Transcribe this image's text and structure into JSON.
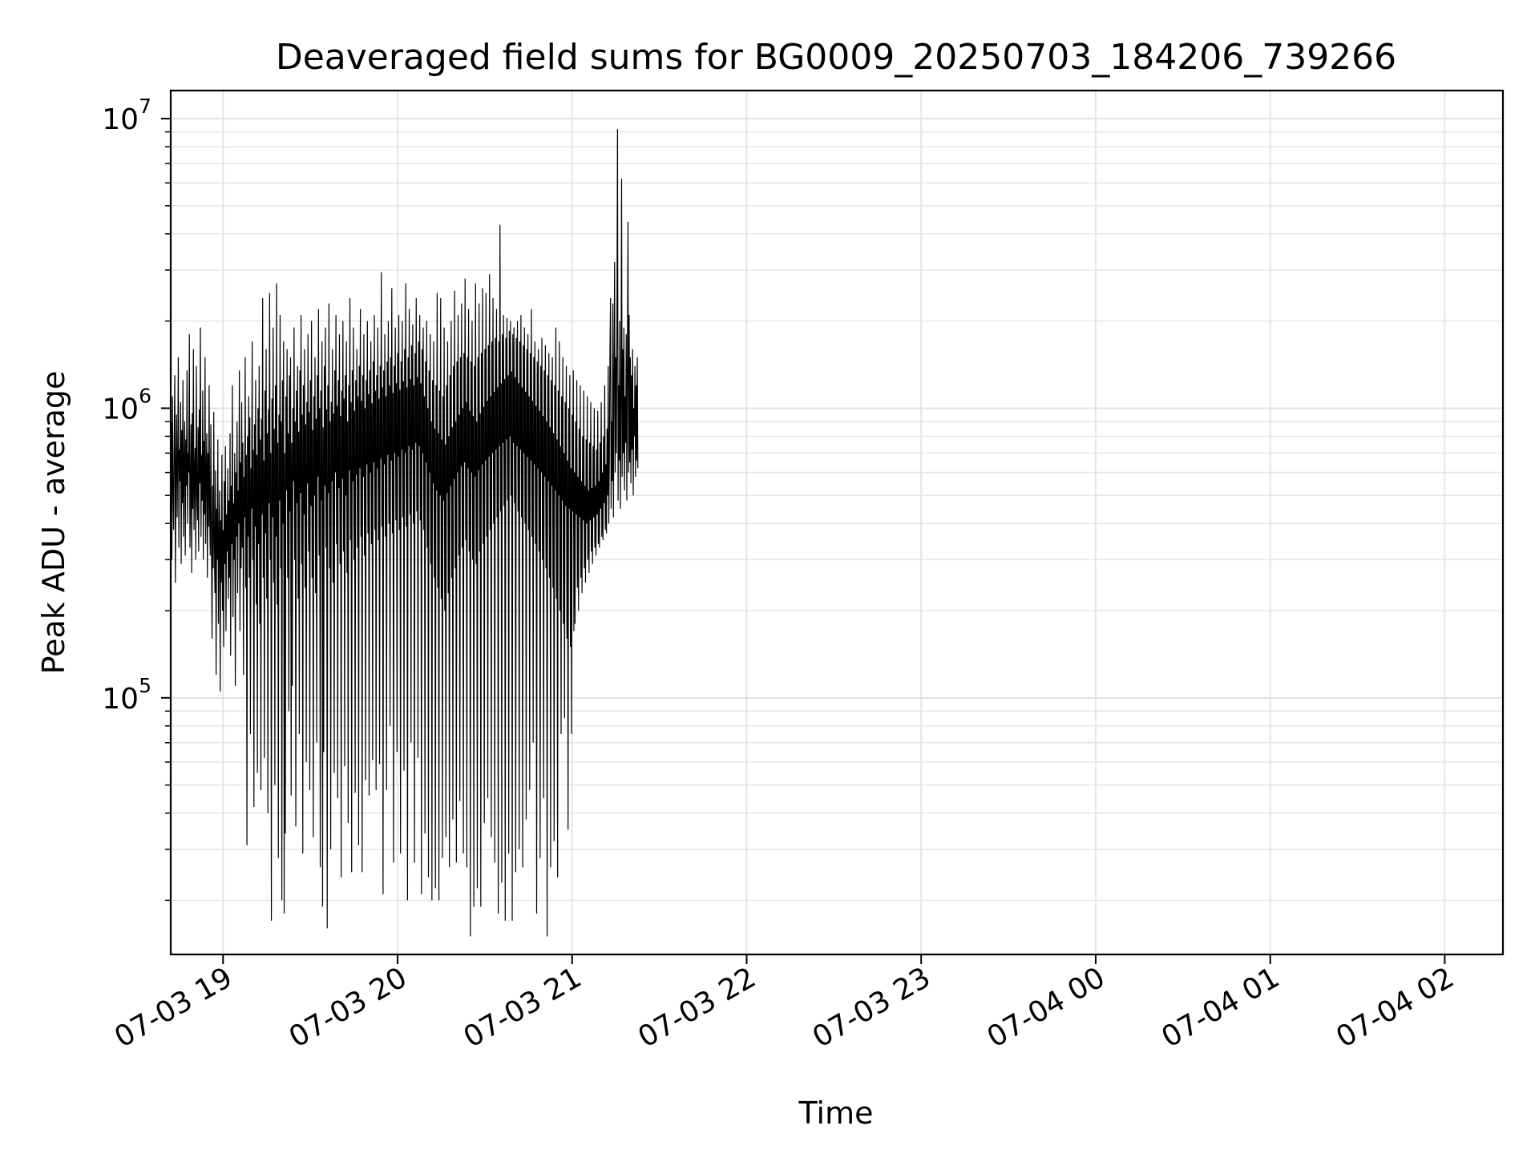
{
  "chart_data": {
    "type": "line",
    "title": "Deaveraged field sums for BG0009_20250703_184206_739266",
    "xlabel": "Time",
    "ylabel": "Peak ADU - average",
    "yscale": "log",
    "ylim": [
      13000,
      12500000
    ],
    "xlim": [
      "07-03 18:42",
      "07-04 02:20"
    ],
    "grid": true,
    "line_color": "#000000",
    "x_ticks": [
      "07-03 19",
      "07-03 20",
      "07-03 21",
      "07-03 22",
      "07-03 23",
      "07-04 00",
      "07-04 01",
      "07-04 02"
    ],
    "y_ticks": [
      {
        "base": "10",
        "exp": "5",
        "value": 100000
      },
      {
        "base": "10",
        "exp": "6",
        "value": 1000000
      },
      {
        "base": "10",
        "exp": "7",
        "value": 10000000
      }
    ],
    "sampling_interval_minutes": 0.2,
    "series": [
      {
        "values": [
          480000,
          900000,
          300000,
          1100000,
          520000,
          380000,
          760000,
          1300000,
          250000,
          610000,
          950000,
          420000,
          680000,
          1500000,
          330000,
          720000,
          560000,
          1050000,
          290000,
          840000,
          470000,
          1250000,
          360000,
          640000,
          900000,
          310000,
          780000,
          540000,
          1350000,
          400000,
          700000,
          600000,
          1800000,
          330000,
          510000,
          880000,
          270000,
          960000,
          450000,
          1600000,
          380000,
          620000,
          730000,
          300000,
          1400000,
          500000,
          410000,
          860000,
          320000,
          990000,
          550000,
          1900000,
          360000,
          690000,
          480000,
          1150000,
          300000,
          770000,
          430000,
          1500000,
          340000,
          600000,
          820000,
          260000,
          700000,
          390000,
          1200000,
          420000,
          310000,
          880000,
          350000,
          160000,
          540000,
          280000,
          970000,
          330000,
          230000,
          610000,
          120000,
          450000,
          300000,
          780000,
          180000,
          360000,
          520000,
          105000,
          410000,
          250000,
          690000,
          200000,
          380000,
          150000,
          560000,
          290000,
          740000,
          170000,
          430000,
          320000,
          620000,
          220000,
          480000,
          260000,
          820000,
          140000,
          540000,
          340000,
          1200000,
          190000,
          470000,
          300000,
          700000,
          110000,
          600000,
          360000,
          900000,
          230000,
          520000,
          400000,
          1350000,
          170000,
          650000,
          280000,
          1050000,
          330000,
          760000,
          120000,
          580000,
          420000,
          1500000,
          240000,
          690000,
          31000,
          800000,
          360000,
          1100000,
          260000,
          930000,
          75000,
          620000,
          450000,
          1700000,
          300000,
          720000,
          42000,
          880000,
          390000,
          1250000,
          210000,
          690000,
          55000,
          1000000,
          340000,
          1400000,
          180000,
          780000,
          48000,
          920000,
          430000,
          2400000,
          260000,
          660000,
          62000,
          1150000,
          370000,
          1600000,
          220000,
          820000,
          40000,
          990000,
          470000,
          2500000,
          300000,
          700000,
          17000,
          1080000,
          420000,
          1900000,
          250000,
          850000,
          50000,
          1200000,
          360000,
          2700000,
          210000,
          760000,
          28000,
          950000,
          480000,
          2100000,
          280000,
          900000,
          20000,
          1250000,
          400000,
          1700000,
          18000,
          700000,
          34000,
          1100000,
          520000,
          1600000,
          260000,
          820000,
          90000,
          1300000,
          440000,
          1500000,
          46000,
          760000,
          110000,
          1000000,
          560000,
          1900000,
          300000,
          900000,
          36000,
          1150000,
          470000,
          1400000,
          220000,
          830000,
          75000,
          1350000,
          510000,
          2100000,
          290000,
          950000,
          29000,
          1200000,
          430000,
          1600000,
          240000,
          880000,
          60000,
          1050000,
          550000,
          1800000,
          320000,
          970000,
          48000,
          1250000,
          460000,
          2000000,
          260000,
          840000,
          33000,
          1100000,
          500000,
          1500000,
          230000,
          920000,
          70000,
          1300000,
          580000,
          2200000,
          310000,
          1000000,
          26000,
          1150000,
          480000,
          1700000,
          19000,
          860000,
          65000,
          1400000,
          540000,
          1900000,
          330000,
          990000,
          16000,
          1200000,
          510000,
          2300000,
          280000,
          900000,
          30000,
          1050000,
          560000,
          1600000,
          250000,
          960000,
          55000,
          1350000,
          600000,
          2100000,
          340000,
          1020000,
          45000,
          1250000,
          530000,
          1800000,
          290000,
          940000,
          24000,
          1150000,
          570000,
          2000000,
          320000,
          1080000,
          58000,
          1300000,
          500000,
          1700000,
          270000,
          900000,
          37000,
          1200000,
          610000,
          2400000,
          350000,
          1050000,
          25000,
          1350000,
          560000,
          1900000,
          300000,
          980000,
          47000,
          1250000,
          590000,
          1600000,
          330000,
          1100000,
          31000,
          1400000,
          620000,
          2200000,
          360000,
          1060000,
          25000,
          1300000,
          580000,
          1800000,
          310000,
          1000000,
          52000,
          1250000,
          640000,
          2000000,
          370000,
          1120000,
          46000,
          1350000,
          600000,
          1700000,
          340000,
          1040000,
          61000,
          1450000,
          650000,
          2100000,
          380000,
          1150000,
          48000,
          1300000,
          620000,
          1900000,
          350000,
          1080000,
          59000,
          1400000,
          670000,
          2950000,
          390000,
          1180000,
          21000,
          1350000,
          640000,
          1800000,
          360000,
          1100000,
          48000,
          1450000,
          690000,
          2000000,
          400000,
          1200000,
          80000,
          1500000,
          660000,
          2600000,
          370000,
          1130000,
          27000,
          1400000,
          700000,
          1900000,
          410000,
          1220000,
          65000,
          1550000,
          680000,
          2100000,
          380000,
          1160000,
          29000,
          1450000,
          720000,
          2000000,
          420000,
          1240000,
          56000,
          1600000,
          700000,
          2700000,
          390000,
          1180000,
          20000,
          1500000,
          740000,
          2200000,
          430000,
          1260000,
          70000,
          1650000,
          720000,
          1950000,
          400000,
          1200000,
          27000,
          1550000,
          760000,
          2400000,
          440000,
          1280000,
          62000,
          1700000,
          740000,
          2100000,
          410000,
          1220000,
          21000,
          1600000,
          700000,
          1900000,
          380000,
          1100000,
          34000,
          1450000,
          650000,
          2000000,
          330000,
          1000000,
          24000,
          1350000,
          600000,
          1800000,
          290000,
          900000,
          20000,
          1250000,
          550000,
          1700000,
          260000,
          850000,
          22000,
          1200000,
          520000,
          2500000,
          240000,
          820000,
          20000,
          1150000,
          500000,
          2400000,
          220000,
          780000,
          28000,
          1100000,
          480000,
          1900000,
          200000,
          750000,
          33000,
          1200000,
          510000,
          1700000,
          230000,
          800000,
          26000,
          1300000,
          540000,
          2000000,
          260000,
          860000,
          38000,
          1400000,
          570000,
          2550000,
          280000,
          900000,
          27000,
          1450000,
          600000,
          2100000,
          310000,
          950000,
          44000,
          1500000,
          630000,
          2300000,
          330000,
          1000000,
          29000,
          1550000,
          650000,
          2800000,
          350000,
          1050000,
          26000,
          1500000,
          620000,
          2200000,
          320000,
          980000,
          15000,
          1450000,
          600000,
          2000000,
          300000,
          940000,
          19000,
          1400000,
          580000,
          2700000,
          290000,
          900000,
          22000,
          1500000,
          610000,
          2300000,
          320000,
          960000,
          19000,
          1550000,
          640000,
          2600000,
          340000,
          1010000,
          37000,
          1600000,
          660000,
          2500000,
          360000,
          1060000,
          45000,
          1650000,
          680000,
          2900000,
          380000,
          1100000,
          33000,
          1700000,
          700000,
          2400000,
          400000,
          1140000,
          27000,
          1750000,
          720000,
          2200000,
          420000,
          1180000,
          18000,
          1700000,
          740000,
          4300000,
          440000,
          1220000,
          23000,
          1800000,
          760000,
          2100000,
          460000,
          1260000,
          17000,
          1750000,
          780000,
          2050000,
          480000,
          1300000,
          29000,
          1850000,
          800000,
          2000000,
          500000,
          1340000,
          17000,
          1800000,
          760000,
          1900000,
          470000,
          1280000,
          25000,
          1750000,
          740000,
          2000000,
          440000,
          1220000,
          30000,
          1700000,
          720000,
          2100000,
          420000,
          1180000,
          26000,
          1650000,
          700000,
          1900000,
          400000,
          1140000,
          38000,
          1600000,
          680000,
          1800000,
          380000,
          1100000,
          48000,
          1550000,
          660000,
          2200000,
          360000,
          1060000,
          70000,
          1500000,
          640000,
          1700000,
          340000,
          1020000,
          18000,
          1450000,
          620000,
          1600000,
          320000,
          980000,
          28000,
          1400000,
          600000,
          1750000,
          300000,
          940000,
          45000,
          1350000,
          580000,
          1650000,
          280000,
          900000,
          15000,
          1300000,
          560000,
          1550000,
          260000,
          860000,
          26000,
          1250000,
          540000,
          1500000,
          240000,
          820000,
          32000,
          1200000,
          520000,
          1900000,
          220000,
          780000,
          24000,
          1150000,
          500000,
          1700000,
          200000,
          740000,
          75000,
          1100000,
          480000,
          1500000,
          180000,
          700000,
          85000,
          1050000,
          460000,
          1400000,
          160000,
          660000,
          35000,
          1000000,
          450000,
          1300000,
          150000,
          620000,
          75000,
          950000,
          440000,
          1350000,
          170000,
          600000,
          180000,
          900000,
          430000,
          1250000,
          240000,
          580000,
          200000,
          850000,
          420000,
          1200000,
          260000,
          560000,
          230000,
          800000,
          410000,
          1150000,
          280000,
          540000,
          250000,
          780000,
          400000,
          1100000,
          300000,
          520000,
          270000,
          760000,
          410000,
          1050000,
          320000,
          530000,
          290000,
          740000,
          420000,
          1000000,
          330000,
          540000,
          310000,
          720000,
          430000,
          980000,
          340000,
          560000,
          330000,
          760000,
          450000,
          1050000,
          360000,
          600000,
          350000,
          800000,
          470000,
          1200000,
          380000,
          640000,
          370000,
          850000,
          500000,
          1400000,
          400000,
          680000,
          1600000,
          2400000,
          450000,
          900000,
          560000,
          2300000,
          420000,
          1300000,
          3200000,
          600000,
          1500000,
          700000,
          1900000,
          9200000,
          480000,
          1200000,
          660000,
          2000000,
          450000,
          1000000,
          6200000,
          580000,
          1600000,
          700000,
          1900000,
          520000,
          1100000,
          760000,
          1800000,
          480000,
          1400000,
          4400000,
          600000,
          2100000,
          650000,
          1500000,
          550000,
          1300000,
          720000,
          1600000,
          500000,
          1000000,
          800000,
          1400000,
          580000,
          1200000,
          660000,
          1500000,
          620000
        ]
      }
    ]
  }
}
